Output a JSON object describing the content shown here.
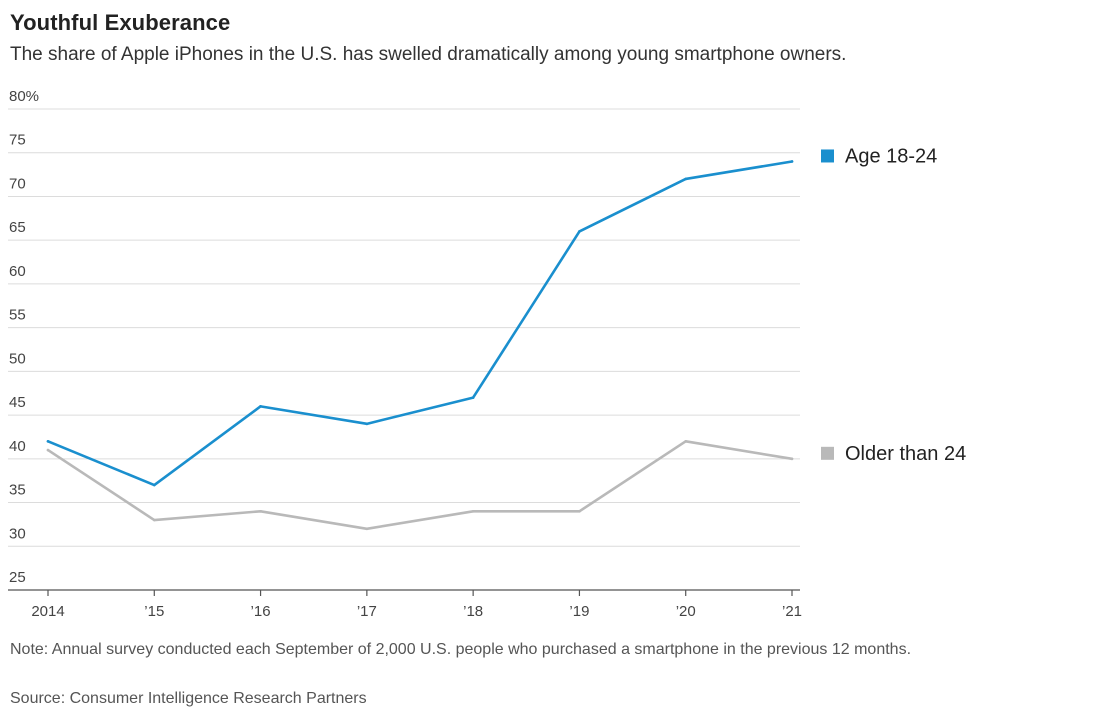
{
  "title": "Youthful Exuberance",
  "subtitle": "The share of Apple iPhones in the U.S. has swelled dramatically among young smartphone owners.",
  "note": "Note: Annual survey conducted each September of 2,000 U.S. people who purchased a smartphone in the previous 12 months.",
  "source": "Source: Consumer Intelligence Research Partners",
  "chart_data": {
    "type": "line",
    "title": "Youthful Exuberance",
    "subtitle": "The share of Apple iPhones in the U.S. has swelled dramatically among young smartphone owners.",
    "x": [
      2014,
      2015,
      2016,
      2017,
      2018,
      2019,
      2020,
      2021
    ],
    "x_tick_labels": [
      "2014",
      "’15",
      "’16",
      "’17",
      "’18",
      "’19",
      "’20",
      "’21"
    ],
    "y_ticks": [
      25,
      30,
      35,
      40,
      45,
      50,
      55,
      60,
      65,
      70,
      75,
      80
    ],
    "y_tick_labels": [
      "25",
      "30",
      "35",
      "40",
      "45",
      "50",
      "55",
      "60",
      "65",
      "70",
      "75",
      "80%"
    ],
    "ylim": [
      25,
      80
    ],
    "grid": true,
    "legend_placement": "right",
    "series": [
      {
        "name": "Age 18-24",
        "color": "#1a8fce",
        "values": [
          42,
          37,
          46,
          44,
          47,
          66,
          72,
          74
        ]
      },
      {
        "name": "Older than 24",
        "color": "#b9b9b9",
        "values": [
          41,
          33,
          34,
          32,
          34,
          34,
          42,
          40
        ]
      }
    ]
  }
}
